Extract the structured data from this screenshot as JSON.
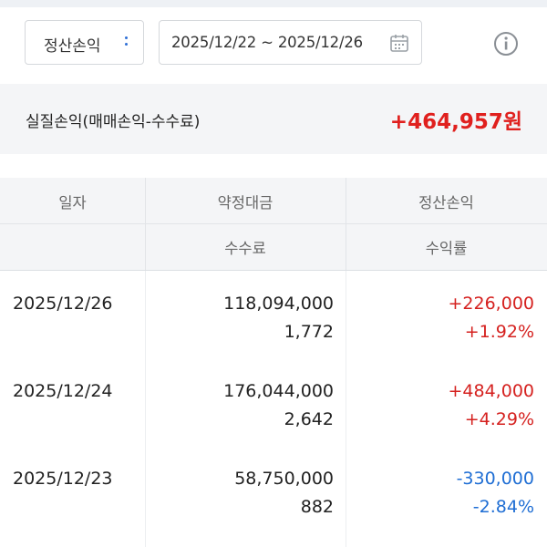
{
  "filter": {
    "type_select": "정산손익",
    "date_range": "2025/12/22 ~ 2025/12/26"
  },
  "summary": {
    "label": "실질손익(매매손익-수수료)",
    "value": "+464,957원"
  },
  "table": {
    "headers_row1": [
      "일자",
      "약정대금",
      "정산손익"
    ],
    "headers_row2": [
      "",
      "수수료",
      "수익률"
    ],
    "rows": [
      {
        "date": "2025/12/26",
        "amount": "118,094,000",
        "fee": "1,772",
        "pnl": "+226,000",
        "rate": "+1.92%",
        "sign": "pos"
      },
      {
        "date": "2025/12/24",
        "amount": "176,044,000",
        "fee": "2,642",
        "pnl": "+484,000",
        "rate": "+4.29%",
        "sign": "pos"
      },
      {
        "date": "2025/12/23",
        "amount": "58,750,000",
        "fee": "882",
        "pnl": "-330,000",
        "rate": "-2.84%",
        "sign": "neg"
      }
    ]
  },
  "colors": {
    "positive": "#d5211f",
    "negative": "#1f6ed4",
    "accent": "#2f6fd6"
  },
  "icons": [
    "calendar-icon",
    "info-icon",
    "more-dots-icon"
  ]
}
